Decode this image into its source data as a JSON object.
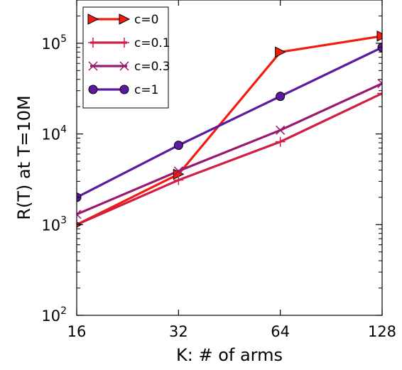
{
  "chart_data": {
    "type": "line",
    "xlabel": "K: # of arms",
    "ylabel": "R(T) at T=10M",
    "x_scale": "log2",
    "y_scale": "log10",
    "xlim": [
      16,
      128
    ],
    "ylim": [
      100,
      300000
    ],
    "x": [
      16,
      32,
      64,
      128
    ],
    "x_tick_labels": [
      "16",
      "32",
      "64",
      "128"
    ],
    "y_ticks": [
      {
        "value": 100,
        "base": "10",
        "exp": "2"
      },
      {
        "value": 1000,
        "base": "10",
        "exp": "3"
      },
      {
        "value": 10000,
        "base": "10",
        "exp": "4"
      },
      {
        "value": 100000,
        "base": "10",
        "exp": "5"
      }
    ],
    "legend_position": "top-left",
    "grid": false,
    "series": [
      {
        "name": "c=0",
        "color": "#f21b0f",
        "marker": "triangle-right",
        "values": [
          1000,
          3600,
          80000,
          120000
        ]
      },
      {
        "name": "c=0.1",
        "color": "#cf1f45",
        "marker": "plus",
        "values": [
          1000,
          3100,
          8200,
          28000
        ]
      },
      {
        "name": "c=0.3",
        "color": "#9a1870",
        "marker": "x",
        "values": [
          1300,
          3900,
          11000,
          36000
        ]
      },
      {
        "name": "c=1",
        "color": "#5c1aa0",
        "marker": "circle",
        "values": [
          2000,
          7500,
          26000,
          90000
        ]
      }
    ]
  }
}
